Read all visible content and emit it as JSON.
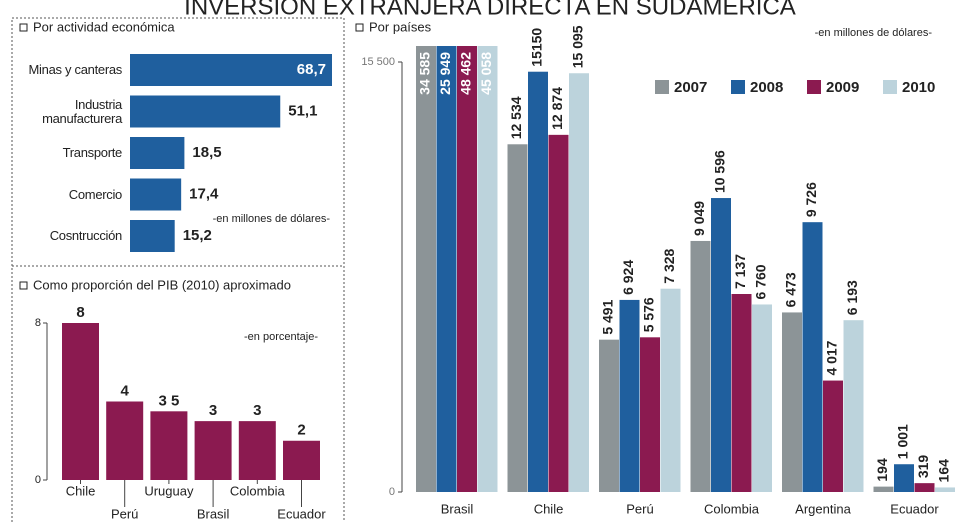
{
  "title": "INVERSIÓN EXTRANJERA DIRECTA EN SUDAMÉRICA",
  "chart_data": [
    {
      "type": "bar",
      "orientation": "horizontal",
      "title": "Por actividad económica",
      "note": "-en millones de dólares-",
      "categories": [
        "Minas y canteras",
        "Industria manufacturera",
        "Transporte",
        "Comercio",
        "Cosntrucción"
      ],
      "values": [
        68.7,
        51.1,
        18.5,
        17.4,
        15.2
      ],
      "value_labels": [
        "68,7",
        "51,1",
        "18,5",
        "17,4",
        "15,2"
      ],
      "color": "#1f5f9e"
    },
    {
      "type": "bar",
      "title": "Como proporción del PIB (2010) aproximado",
      "note": "-en porcentaje-",
      "categories": [
        "Chile",
        "Perú",
        "Uruguay",
        "Brasil",
        "Colombia",
        "Ecuador"
      ],
      "values": [
        8,
        4,
        3.5,
        3,
        3,
        2
      ],
      "value_labels": [
        "8",
        "4",
        "3 5",
        "3",
        "3",
        "2"
      ],
      "color": "#8b1a50",
      "ylim": [
        0,
        8
      ],
      "yticks": [
        8,
        0
      ]
    },
    {
      "type": "grouped_bar",
      "title": "Por países",
      "note": "-en millones de dólares-",
      "categories": [
        "Brasil",
        "Chile",
        "Perú",
        "Colombia",
        "Argentina",
        "Ecuador"
      ],
      "series": [
        {
          "name": "2007",
          "color": "#8c9497",
          "values": [
            34585,
            12534,
            5491,
            9049,
            6473,
            194
          ],
          "value_labels": [
            "34 585",
            "12 534",
            "5 491",
            "9 049",
            "6 473",
            "194"
          ]
        },
        {
          "name": "2008",
          "color": "#1f5f9e",
          "values": [
            25949,
            15150,
            6924,
            10596,
            9726,
            1001
          ],
          "value_labels": [
            "25 949",
            "15150",
            "6 924",
            "10 596",
            "9 726",
            "1 001"
          ]
        },
        {
          "name": "2009",
          "color": "#8b1a50",
          "values": [
            48462,
            12874,
            5576,
            7137,
            4017,
            319
          ],
          "value_labels": [
            "48 462",
            "12 874",
            "5 576",
            "7 137",
            "4 017",
            "319"
          ]
        },
        {
          "name": "2010",
          "color": "#bcd3dc",
          "values": [
            45058,
            15095,
            7328,
            6760,
            6193,
            164
          ],
          "value_labels": [
            "45 058",
            "15 095",
            "7 328",
            "6 760",
            "6 193",
            "164"
          ]
        }
      ],
      "ylim": [
        0,
        15500
      ],
      "yticks": [
        {
          "value": 15500,
          "label": "15 500"
        },
        0
      ]
    }
  ]
}
